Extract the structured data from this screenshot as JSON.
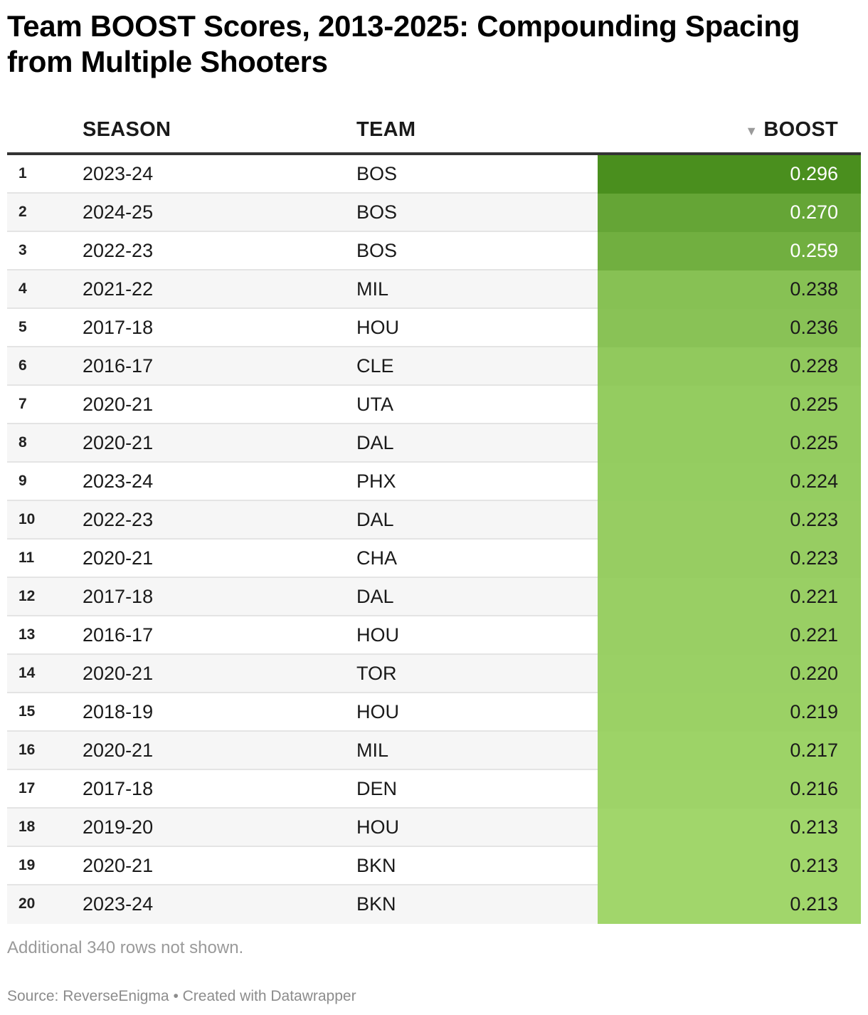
{
  "title": "Team BOOST Scores, 2013-2025: Compounding Spacing from Multiple Shooters",
  "table": {
    "headers": {
      "rank": "",
      "season": "SEASON",
      "team": "TEAM",
      "boost": "BOOST"
    },
    "sort_indicator": "▼",
    "sort_column": "boost",
    "sort_direction": "descending"
  },
  "colors": {
    "boost_scale_high": "#4a8f1e",
    "boost_scale_low": "#a1d66b",
    "header_rule": "#333333",
    "row_alt": "#f6f6f6"
  },
  "chart_data": {
    "type": "table",
    "columns": [
      "",
      "SEASON",
      "TEAM",
      "BOOST"
    ],
    "rows": [
      {
        "rank": "1",
        "season": "2023-24",
        "team": "BOS",
        "boost": "0.296"
      },
      {
        "rank": "2",
        "season": "2024-25",
        "team": "BOS",
        "boost": "0.270"
      },
      {
        "rank": "3",
        "season": "2022-23",
        "team": "BOS",
        "boost": "0.259"
      },
      {
        "rank": "4",
        "season": "2021-22",
        "team": "MIL",
        "boost": "0.238"
      },
      {
        "rank": "5",
        "season": "2017-18",
        "team": "HOU",
        "boost": "0.236"
      },
      {
        "rank": "6",
        "season": "2016-17",
        "team": "CLE",
        "boost": "0.228"
      },
      {
        "rank": "7",
        "season": "2020-21",
        "team": "UTA",
        "boost": "0.225"
      },
      {
        "rank": "8",
        "season": "2020-21",
        "team": "DAL",
        "boost": "0.225"
      },
      {
        "rank": "9",
        "season": "2023-24",
        "team": "PHX",
        "boost": "0.224"
      },
      {
        "rank": "10",
        "season": "2022-23",
        "team": "DAL",
        "boost": "0.223"
      },
      {
        "rank": "11",
        "season": "2020-21",
        "team": "CHA",
        "boost": "0.223"
      },
      {
        "rank": "12",
        "season": "2017-18",
        "team": "DAL",
        "boost": "0.221"
      },
      {
        "rank": "13",
        "season": "2016-17",
        "team": "HOU",
        "boost": "0.221"
      },
      {
        "rank": "14",
        "season": "2020-21",
        "team": "TOR",
        "boost": "0.220"
      },
      {
        "rank": "15",
        "season": "2018-19",
        "team": "HOU",
        "boost": "0.219"
      },
      {
        "rank": "16",
        "season": "2020-21",
        "team": "MIL",
        "boost": "0.217"
      },
      {
        "rank": "17",
        "season": "2017-18",
        "team": "DEN",
        "boost": "0.216"
      },
      {
        "rank": "18",
        "season": "2019-20",
        "team": "HOU",
        "boost": "0.213"
      },
      {
        "rank": "19",
        "season": "2020-21",
        "team": "BKN",
        "boost": "0.213"
      },
      {
        "rank": "20",
        "season": "2023-24",
        "team": "BKN",
        "boost": "0.213"
      }
    ]
  },
  "notes": "Additional 340 rows not shown.",
  "footer": "Source: ReverseEnigma • Created with Datawrapper"
}
